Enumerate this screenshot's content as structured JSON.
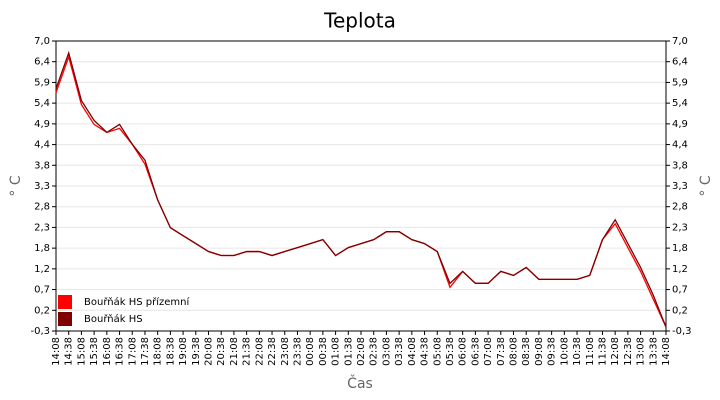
{
  "chart_data": {
    "type": "line",
    "title": "Teplota",
    "xlabel": "Čas",
    "ylabel": "° C",
    "y2label": "° C",
    "categories": [
      "14:08",
      "14:38",
      "15:08",
      "15:38",
      "16:08",
      "16:38",
      "17:08",
      "17:38",
      "18:08",
      "18:38",
      "19:08",
      "19:38",
      "20:08",
      "20:38",
      "21:08",
      "21:38",
      "22:08",
      "22:38",
      "23:08",
      "23:38",
      "00:08",
      "00:38",
      "01:08",
      "01:38",
      "02:08",
      "02:38",
      "03:08",
      "03:38",
      "04:08",
      "04:38",
      "05:08",
      "05:38",
      "06:08",
      "06:38",
      "07:08",
      "07:38",
      "08:08",
      "08:38",
      "09:08",
      "09:38",
      "10:08",
      "10:38",
      "11:08",
      "11:38",
      "12:08",
      "12:38",
      "13:08",
      "13:38",
      "14:08"
    ],
    "series": [
      {
        "name": "Bouřňák HS přízemní",
        "color": "#ff0000",
        "values": [
          5.7,
          6.6,
          5.4,
          4.9,
          4.7,
          4.8,
          4.4,
          3.9,
          3.0,
          2.3,
          2.1,
          1.9,
          1.7,
          1.6,
          1.6,
          1.7,
          1.7,
          1.6,
          1.7,
          1.8,
          1.9,
          2.0,
          1.6,
          1.8,
          1.9,
          2.0,
          2.2,
          2.2,
          2.0,
          1.9,
          1.7,
          0.8,
          1.2,
          0.9,
          0.9,
          1.2,
          1.1,
          1.3,
          1.0,
          1.0,
          1.0,
          1.0,
          1.1,
          2.0,
          2.4,
          1.8,
          1.2,
          0.5,
          -0.2
        ]
      },
      {
        "name": "Bouřňák HS",
        "color": "#800000",
        "values": [
          5.8,
          6.7,
          5.5,
          5.0,
          4.7,
          4.9,
          4.4,
          4.0,
          3.0,
          2.3,
          2.1,
          1.9,
          1.7,
          1.6,
          1.6,
          1.7,
          1.7,
          1.6,
          1.7,
          1.8,
          1.9,
          2.0,
          1.6,
          1.8,
          1.9,
          2.0,
          2.2,
          2.2,
          2.0,
          1.9,
          1.7,
          0.9,
          1.2,
          0.9,
          0.9,
          1.2,
          1.1,
          1.3,
          1.0,
          1.0,
          1.0,
          1.0,
          1.1,
          2.0,
          2.5,
          1.9,
          1.3,
          0.6,
          -0.2
        ]
      }
    ],
    "ylim": [
      -0.3,
      7.0
    ],
    "yticks": [
      {
        "value": -0.3,
        "label": "-0,3"
      },
      {
        "value": 0.221,
        "label": "0,2"
      },
      {
        "value": 0.743,
        "label": "0,7"
      },
      {
        "value": 1.264,
        "label": "1,2"
      },
      {
        "value": 1.786,
        "label": "1,8"
      },
      {
        "value": 2.307,
        "label": "2,3"
      },
      {
        "value": 2.829,
        "label": "2,8"
      },
      {
        "value": 3.35,
        "label": "3,3"
      },
      {
        "value": 3.871,
        "label": "3,8"
      },
      {
        "value": 4.393,
        "label": "4,4"
      },
      {
        "value": 4.914,
        "label": "4,9"
      },
      {
        "value": 5.436,
        "label": "5,4"
      },
      {
        "value": 5.957,
        "label": "5,9"
      },
      {
        "value": 6.479,
        "label": "6,4"
      },
      {
        "value": 7.0,
        "label": "7,0"
      }
    ],
    "y2lim": [
      -0.3,
      7.0
    ],
    "y2ticks": [
      {
        "value": -0.3,
        "label": "-0,3"
      },
      {
        "value": 0.221,
        "label": "0,2"
      },
      {
        "value": 0.743,
        "label": "0,7"
      },
      {
        "value": 1.264,
        "label": "1,2"
      },
      {
        "value": 1.786,
        "label": "1,8"
      },
      {
        "value": 2.307,
        "label": "2,3"
      },
      {
        "value": 2.829,
        "label": "2,8"
      },
      {
        "value": 3.35,
        "label": "3,3"
      },
      {
        "value": 3.871,
        "label": "3,8"
      },
      {
        "value": 4.393,
        "label": "4,4"
      },
      {
        "value": 4.914,
        "label": "4,9"
      },
      {
        "value": 5.436,
        "label": "5,4"
      },
      {
        "value": 5.957,
        "label": "5,9"
      },
      {
        "value": 6.479,
        "label": "6,4"
      },
      {
        "value": 7.0,
        "label": "7,0"
      }
    ],
    "grid": true,
    "legend": "lower-left"
  }
}
